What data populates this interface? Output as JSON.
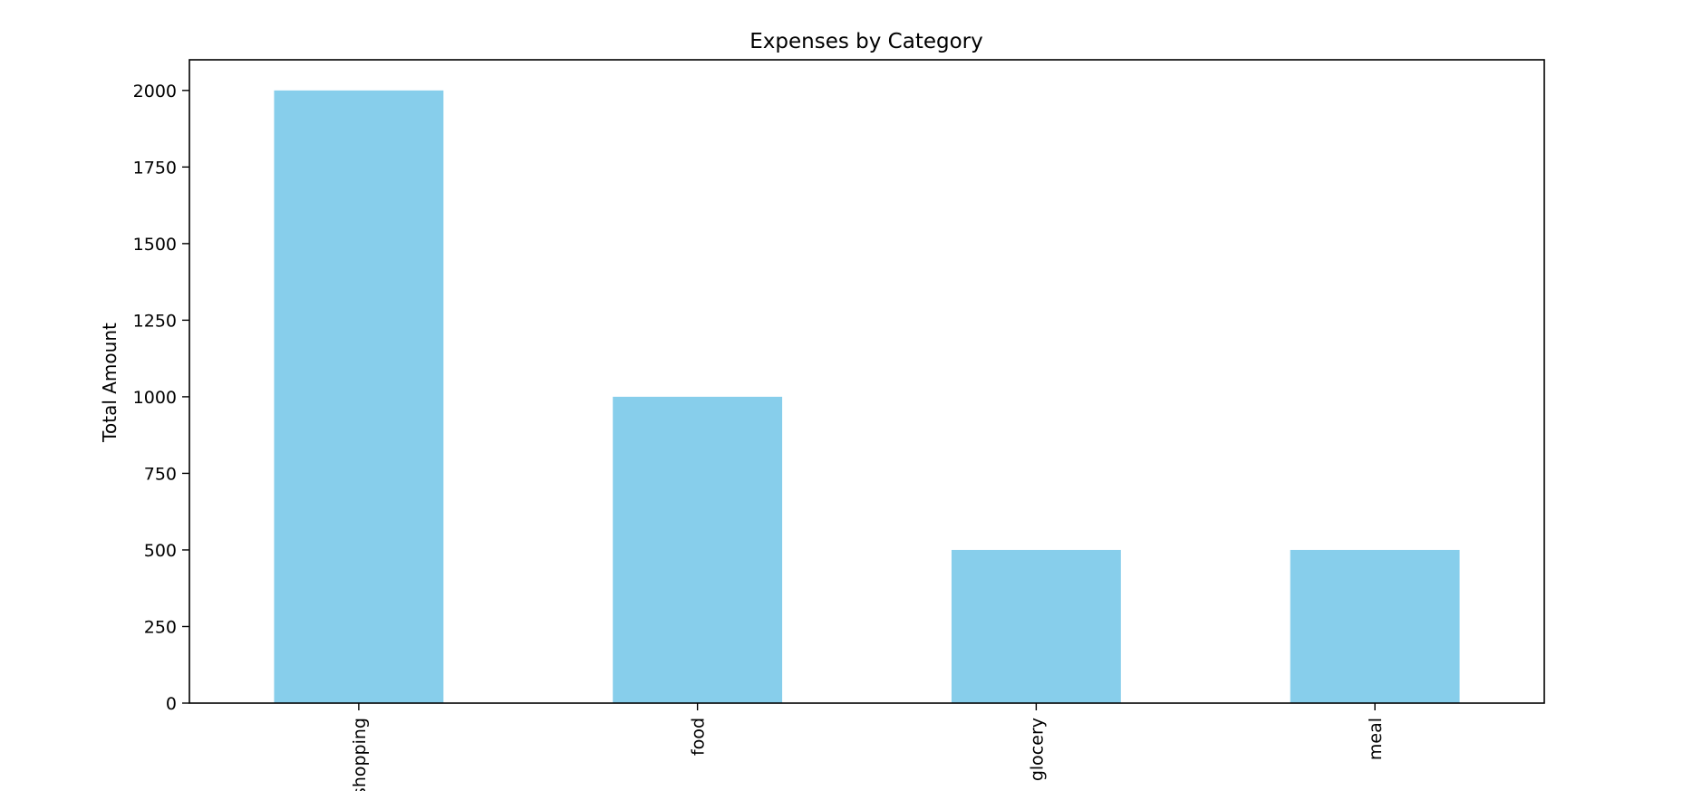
{
  "chart_data": {
    "type": "bar",
    "title": "Expenses by Category",
    "xlabel": "",
    "ylabel": "Total Amount",
    "categories": [
      "shopping",
      "food",
      "glocery",
      "meal"
    ],
    "values": [
      2000,
      1000,
      500,
      500
    ],
    "yticks": [
      0,
      250,
      500,
      750,
      1000,
      1250,
      1500,
      1750,
      2000
    ],
    "ylim": [
      0,
      2100
    ],
    "grid": false,
    "legend": false,
    "bar_color": "#87ceeb",
    "axis_color": "#000000",
    "background": "#ffffff"
  }
}
